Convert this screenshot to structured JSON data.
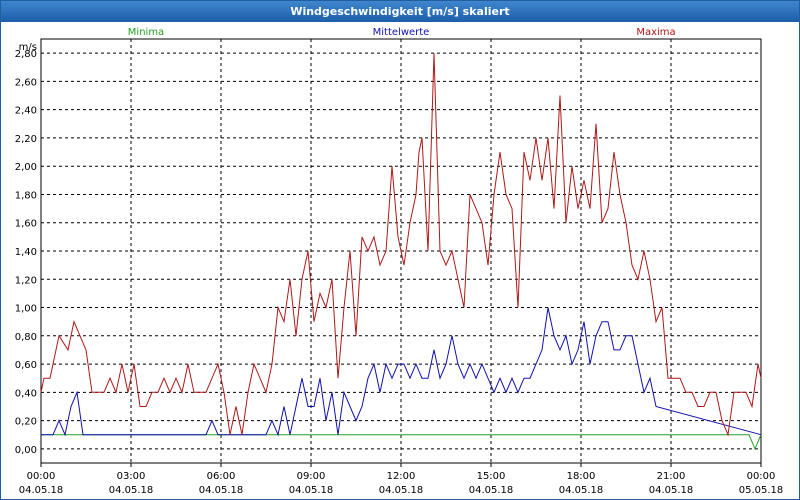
{
  "window": {
    "title": "Windgeschwindigkeit [m/s] skaliert"
  },
  "chart_data": {
    "type": "line",
    "title": "Windgeschwindigkeit [m/s] skaliert",
    "ylabel": "m/s",
    "ylim": [
      -0.1,
      2.9
    ],
    "xlim_hours": [
      0,
      24
    ],
    "grid": true,
    "y_ticks": [
      "0,00",
      "0,20",
      "0,40",
      "0,60",
      "0,80",
      "1,00",
      "1,20",
      "1,40",
      "1,60",
      "1,80",
      "2,00",
      "2,20",
      "2,40",
      "2,60",
      "2,80"
    ],
    "x_ticks": [
      {
        "time": "00:00",
        "date": "04.05.18"
      },
      {
        "time": "03:00",
        "date": "04.05.18"
      },
      {
        "time": "06:00",
        "date": "04.05.18"
      },
      {
        "time": "09:00",
        "date": "04.05.18"
      },
      {
        "time": "12:00",
        "date": "04.05.18"
      },
      {
        "time": "15:00",
        "date": "04.05.18"
      },
      {
        "time": "18:00",
        "date": "04.05.18"
      },
      {
        "time": "21:00",
        "date": "04.05.18"
      },
      {
        "time": "00:00",
        "date": "05.05.18"
      }
    ],
    "series": [
      {
        "name": "Minima",
        "color": "#22a022",
        "x": [
          0,
          23.1,
          23.6,
          23.8,
          24
        ],
        "values": [
          0.1,
          0.1,
          0.1,
          0.0,
          0.1
        ]
      },
      {
        "name": "Mittelwerte",
        "color": "#1010b0",
        "x": [
          0,
          0.4,
          0.6,
          0.8,
          1.0,
          1.2,
          1.4,
          5.5,
          5.7,
          5.9,
          7.5,
          7.7,
          7.9,
          8.1,
          8.3,
          8.5,
          8.7,
          8.9,
          9.1,
          9.3,
          9.5,
          9.7,
          9.9,
          10.1,
          10.3,
          10.5,
          10.7,
          10.9,
          11.1,
          11.3,
          11.5,
          11.7,
          11.9,
          12.1,
          12.3,
          12.5,
          12.7,
          12.9,
          13.1,
          13.3,
          13.5,
          13.7,
          13.9,
          14.1,
          14.3,
          14.5,
          14.7,
          14.9,
          15.1,
          15.3,
          15.5,
          15.7,
          15.9,
          16.1,
          16.3,
          16.5,
          16.7,
          16.9,
          17.1,
          17.3,
          17.5,
          17.7,
          17.9,
          18.1,
          18.3,
          18.5,
          18.7,
          18.9,
          19.1,
          19.3,
          19.5,
          19.7,
          19.9,
          20.1,
          20.3,
          20.5,
          24
        ],
        "values": [
          0.1,
          0.1,
          0.2,
          0.1,
          0.3,
          0.4,
          0.1,
          0.1,
          0.2,
          0.1,
          0.1,
          0.2,
          0.1,
          0.3,
          0.1,
          0.3,
          0.5,
          0.3,
          0.3,
          0.5,
          0.2,
          0.4,
          0.1,
          0.4,
          0.3,
          0.2,
          0.3,
          0.5,
          0.6,
          0.4,
          0.6,
          0.5,
          0.6,
          0.6,
          0.5,
          0.6,
          0.5,
          0.5,
          0.7,
          0.5,
          0.6,
          0.8,
          0.6,
          0.5,
          0.6,
          0.5,
          0.6,
          0.5,
          0.4,
          0.5,
          0.4,
          0.5,
          0.4,
          0.5,
          0.5,
          0.6,
          0.7,
          1.0,
          0.8,
          0.7,
          0.8,
          0.6,
          0.7,
          0.9,
          0.6,
          0.8,
          0.9,
          0.9,
          0.7,
          0.7,
          0.8,
          0.8,
          0.6,
          0.4,
          0.5,
          0.3,
          0.1
        ]
      },
      {
        "name": "Maxima",
        "color": "#b01818",
        "x": [
          0,
          0.1,
          0.3,
          0.6,
          0.9,
          1.1,
          1.3,
          1.5,
          1.7,
          1.9,
          2.1,
          2.3,
          2.5,
          2.7,
          2.9,
          3.1,
          3.3,
          3.5,
          3.7,
          3.9,
          4.1,
          4.3,
          4.5,
          4.7,
          4.9,
          5.1,
          5.3,
          5.5,
          5.7,
          5.9,
          6.1,
          6.3,
          6.5,
          6.7,
          6.9,
          7.1,
          7.3,
          7.5,
          7.7,
          7.9,
          8.1,
          8.3,
          8.5,
          8.7,
          8.9,
          9.1,
          9.3,
          9.5,
          9.7,
          9.9,
          10.1,
          10.3,
          10.5,
          10.7,
          10.9,
          11.1,
          11.3,
          11.5,
          11.7,
          11.9,
          12.1,
          12.3,
          12.5,
          12.6,
          12.7,
          12.9,
          13.1,
          13.3,
          13.5,
          13.7,
          13.9,
          14.1,
          14.3,
          14.5,
          14.7,
          14.9,
          15.1,
          15.3,
          15.5,
          15.7,
          15.9,
          16.1,
          16.3,
          16.5,
          16.7,
          16.9,
          17.1,
          17.3,
          17.5,
          17.7,
          17.9,
          18.1,
          18.3,
          18.5,
          18.7,
          18.9,
          19.1,
          19.3,
          19.5,
          19.7,
          19.9,
          20.1,
          20.3,
          20.5,
          20.7,
          20.9,
          21.1,
          21.3,
          21.5,
          21.7,
          21.9,
          22.1,
          22.3,
          22.5,
          22.7,
          22.9,
          23.1,
          23.3,
          23.5,
          23.7,
          23.9,
          24
        ],
        "values": [
          0.4,
          0.5,
          0.5,
          0.8,
          0.7,
          0.9,
          0.8,
          0.7,
          0.4,
          0.4,
          0.4,
          0.5,
          0.4,
          0.6,
          0.4,
          0.6,
          0.3,
          0.3,
          0.4,
          0.4,
          0.5,
          0.4,
          0.5,
          0.4,
          0.6,
          0.4,
          0.4,
          0.4,
          0.5,
          0.6,
          0.4,
          0.1,
          0.3,
          0.1,
          0.4,
          0.6,
          0.5,
          0.4,
          0.6,
          1.0,
          0.9,
          1.2,
          0.8,
          1.2,
          1.4,
          0.9,
          1.1,
          1.0,
          1.2,
          0.5,
          1.0,
          1.4,
          0.8,
          1.5,
          1.4,
          1.5,
          1.3,
          1.4,
          2.0,
          1.5,
          1.3,
          1.6,
          1.8,
          2.1,
          2.2,
          1.4,
          2.8,
          1.4,
          1.3,
          1.4,
          1.2,
          1.0,
          1.8,
          1.7,
          1.6,
          1.3,
          1.8,
          2.1,
          1.8,
          1.7,
          1.0,
          2.1,
          1.9,
          2.2,
          1.9,
          2.2,
          1.7,
          2.5,
          1.6,
          2.0,
          1.7,
          1.9,
          1.7,
          2.3,
          1.6,
          1.7,
          2.1,
          1.8,
          1.6,
          1.3,
          1.2,
          1.4,
          1.2,
          0.9,
          1.0,
          0.5,
          0.5,
          0.5,
          0.4,
          0.4,
          0.3,
          0.3,
          0.4,
          0.4,
          0.2,
          0.1,
          0.4,
          0.4,
          0.4,
          0.3,
          0.6,
          0.5
        ]
      }
    ]
  }
}
